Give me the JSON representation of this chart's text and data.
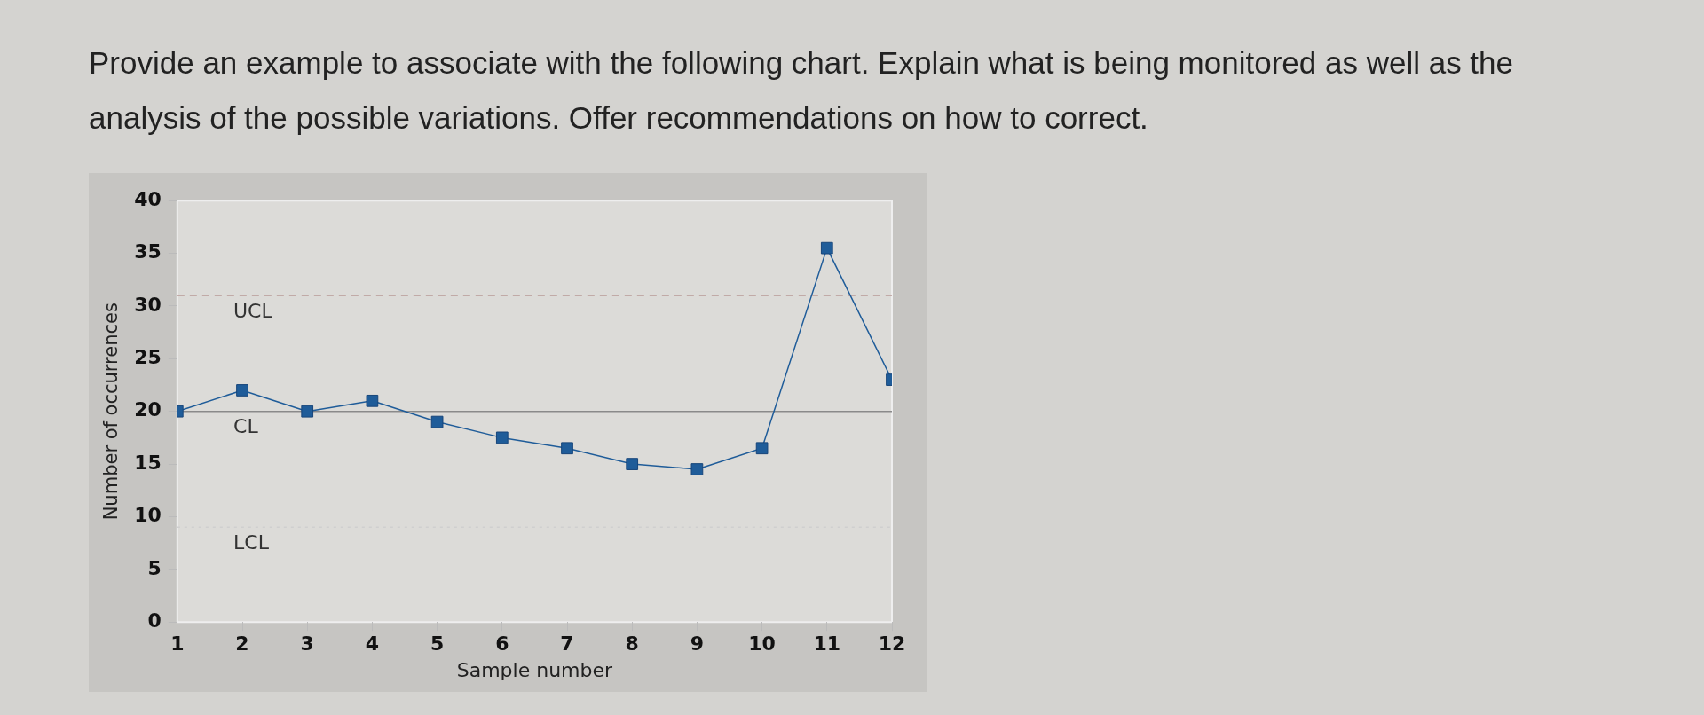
{
  "chart_data": {
    "type": "line",
    "title": "Provide an example to associate with the following chart. Explain what is being monitored as well as the analysis of the possible variations. Offer recommendations on how to correct.",
    "xlabel": "Sample number",
    "ylabel": "Number of occurrences",
    "x": [
      1,
      2,
      3,
      4,
      5,
      6,
      7,
      8,
      9,
      10,
      11,
      12
    ],
    "series": [
      {
        "color": "#1f5c99",
        "values": [
          20,
          22,
          20,
          21,
          19,
          17.5,
          16.5,
          15,
          14.5,
          16.5,
          35.5,
          23
        ]
      }
    ],
    "xlim": [
      1,
      12
    ],
    "xticks": [
      1,
      2,
      3,
      4,
      5,
      6,
      7,
      8,
      9,
      10,
      11,
      12
    ],
    "ylim": [
      0,
      40
    ],
    "yticks": [
      0,
      5,
      10,
      15,
      20,
      25,
      30,
      35,
      40
    ],
    "ref_lines": [
      {
        "axis": "y",
        "value": 31,
        "label": "UCL",
        "color": "#b89a96",
        "line_style": "dashed"
      },
      {
        "axis": "y",
        "value": 20,
        "label": "CL",
        "color": "#8a8a8a",
        "line_style": "solid"
      },
      {
        "axis": "y",
        "value": 9,
        "label": "LCL",
        "color": "#cfcfcf",
        "line_style": "dotted"
      }
    ],
    "marker": "square",
    "line_style": "solid",
    "grid": false,
    "legend": false
  }
}
